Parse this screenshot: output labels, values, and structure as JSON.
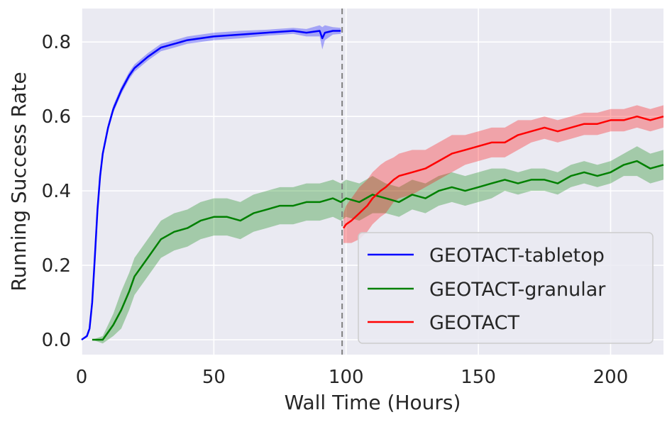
{
  "chart_data": {
    "type": "line",
    "title": "",
    "xlabel": "Wall Time (Hours)",
    "ylabel": "Running Success Rate",
    "xlim": [
      0,
      220
    ],
    "ylim": [
      -0.04,
      0.89
    ],
    "xticks": [
      0,
      50,
      100,
      150,
      200
    ],
    "xtick_labels": [
      "0",
      "50",
      "100",
      "150",
      "200"
    ],
    "yticks": [
      0.0,
      0.2,
      0.4,
      0.6,
      0.8
    ],
    "ytick_labels": [
      "0.0",
      "0.2",
      "0.4",
      "0.6",
      "0.8"
    ],
    "grid": true,
    "legend_position": "lower-right",
    "vline": {
      "x": 98.5,
      "style": "dashed",
      "color": "#808080"
    },
    "series": [
      {
        "name": "GEOTACT-tabletop",
        "color": "#0000ff",
        "x": [
          0,
          2,
          3,
          4,
          5,
          6,
          7,
          8,
          10,
          12,
          15,
          18,
          20,
          25,
          30,
          35,
          40,
          50,
          60,
          70,
          80,
          85,
          90,
          91,
          92,
          95,
          98
        ],
        "y": [
          0.0,
          0.01,
          0.03,
          0.1,
          0.22,
          0.35,
          0.44,
          0.5,
          0.57,
          0.62,
          0.67,
          0.71,
          0.73,
          0.76,
          0.785,
          0.795,
          0.805,
          0.815,
          0.82,
          0.825,
          0.83,
          0.825,
          0.83,
          0.81,
          0.825,
          0.83,
          0.83
        ],
        "band": [
          0.0,
          0.004,
          0.006,
          0.008,
          0.01,
          0.01,
          0.01,
          0.01,
          0.01,
          0.01,
          0.01,
          0.01,
          0.01,
          0.01,
          0.01,
          0.01,
          0.01,
          0.01,
          0.01,
          0.008,
          0.008,
          0.01,
          0.015,
          0.03,
          0.02,
          0.01,
          0.008
        ]
      },
      {
        "name": "GEOTACT-granular",
        "color": "#008000",
        "x": [
          4,
          6,
          8,
          10,
          12,
          15,
          18,
          20,
          25,
          30,
          35,
          40,
          45,
          50,
          55,
          60,
          65,
          70,
          75,
          80,
          85,
          90,
          95,
          98,
          100,
          105,
          110,
          115,
          120,
          125,
          130,
          135,
          140,
          145,
          150,
          155,
          160,
          165,
          170,
          175,
          180,
          185,
          190,
          195,
          200,
          205,
          210,
          215,
          220
        ],
        "y": [
          0.0,
          0.0,
          0.0,
          0.02,
          0.04,
          0.08,
          0.13,
          0.17,
          0.22,
          0.27,
          0.29,
          0.3,
          0.32,
          0.33,
          0.33,
          0.32,
          0.34,
          0.35,
          0.36,
          0.36,
          0.37,
          0.37,
          0.38,
          0.37,
          0.38,
          0.37,
          0.39,
          0.38,
          0.37,
          0.39,
          0.38,
          0.4,
          0.41,
          0.4,
          0.41,
          0.42,
          0.43,
          0.42,
          0.43,
          0.43,
          0.42,
          0.44,
          0.45,
          0.44,
          0.45,
          0.47,
          0.48,
          0.46,
          0.47
        ],
        "band": [
          0.0,
          0.005,
          0.01,
          0.02,
          0.03,
          0.05,
          0.05,
          0.05,
          0.05,
          0.05,
          0.05,
          0.05,
          0.05,
          0.05,
          0.05,
          0.05,
          0.05,
          0.05,
          0.05,
          0.05,
          0.05,
          0.05,
          0.05,
          0.05,
          0.05,
          0.05,
          0.05,
          0.04,
          0.04,
          0.04,
          0.04,
          0.04,
          0.04,
          0.04,
          0.04,
          0.04,
          0.03,
          0.03,
          0.03,
          0.03,
          0.03,
          0.03,
          0.03,
          0.03,
          0.03,
          0.03,
          0.04,
          0.04,
          0.04
        ]
      },
      {
        "name": "GEOTACT",
        "color": "#ff0000",
        "x": [
          99,
          100,
          102,
          105,
          108,
          110,
          113,
          115,
          118,
          120,
          125,
          130,
          135,
          140,
          145,
          150,
          155,
          160,
          165,
          170,
          175,
          180,
          185,
          190,
          195,
          200,
          205,
          210,
          215,
          220
        ],
        "y": [
          0.3,
          0.31,
          0.32,
          0.34,
          0.36,
          0.38,
          0.4,
          0.41,
          0.43,
          0.44,
          0.45,
          0.46,
          0.48,
          0.5,
          0.51,
          0.52,
          0.53,
          0.53,
          0.55,
          0.56,
          0.57,
          0.56,
          0.57,
          0.58,
          0.58,
          0.59,
          0.59,
          0.6,
          0.59,
          0.6
        ],
        "band": [
          0.04,
          0.05,
          0.06,
          0.07,
          0.07,
          0.07,
          0.07,
          0.07,
          0.06,
          0.06,
          0.06,
          0.05,
          0.05,
          0.05,
          0.04,
          0.04,
          0.04,
          0.04,
          0.04,
          0.03,
          0.03,
          0.03,
          0.03,
          0.03,
          0.03,
          0.03,
          0.03,
          0.03,
          0.03,
          0.03
        ]
      }
    ]
  }
}
